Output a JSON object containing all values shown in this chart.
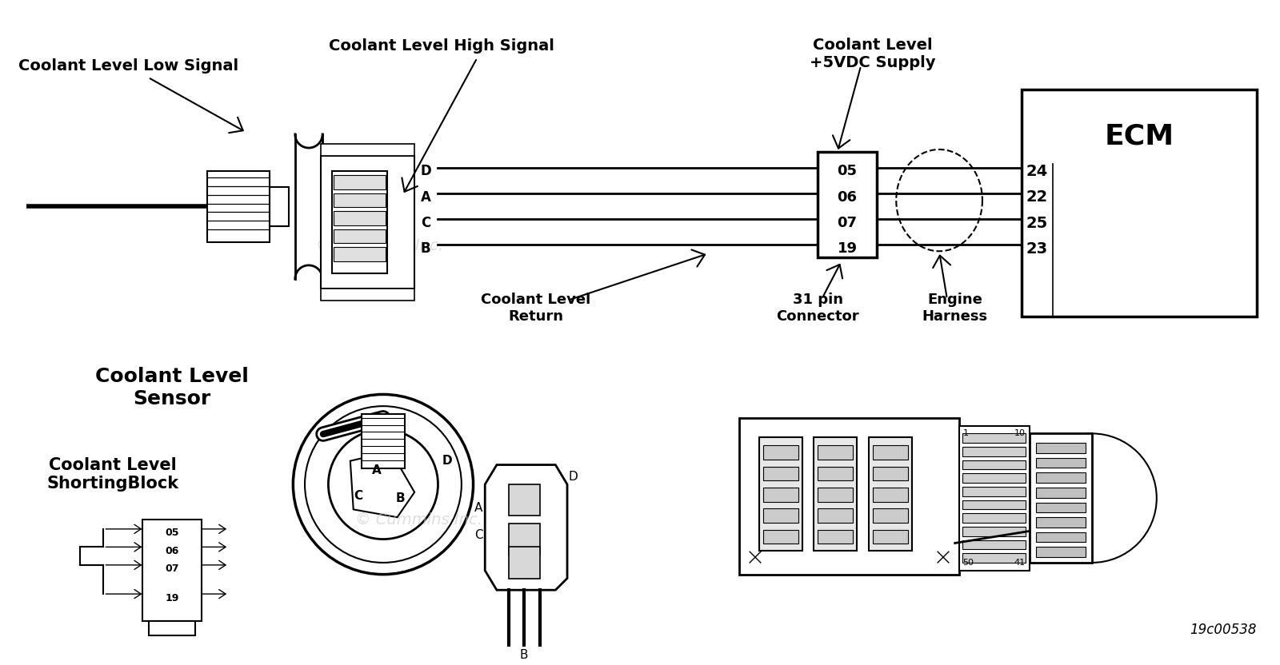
{
  "bg_color": "#ffffff",
  "line_color": "#000000",
  "labels": {
    "coolant_high_signal": "Coolant Level High Signal",
    "coolant_low_signal": "Coolant Level Low Signal",
    "coolant_5vdc": "Coolant Level\n+5VDC Supply",
    "coolant_return": "Coolant Level\nReturn",
    "coolant_level_sensor": "Coolant Level\nSensor",
    "coolant_shorting": "Coolant Level\nShortingBlock",
    "ecm": "ECM",
    "engine_harness": "Engine\nHarness",
    "31pin": "31 pin\nConnector",
    "part_number": "19c00538"
  },
  "connector_pins": [
    "05",
    "06",
    "07",
    "19"
  ],
  "ecm_pins": [
    "24",
    "22",
    "25",
    "23"
  ],
  "sensor_pins": [
    "D",
    "A",
    "C",
    "B"
  ],
  "watermark": "© Cummins Inc."
}
